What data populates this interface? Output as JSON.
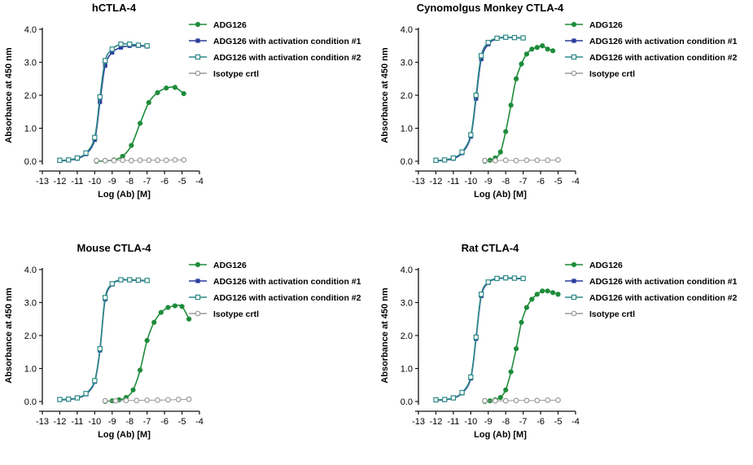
{
  "figure": {
    "panel_titles": [
      "hCTLA-4",
      "Cynomolgus Monkey CTLA-4",
      "Mouse CTLA-4",
      "Rat CTLA-4"
    ]
  },
  "chart_data": [
    {
      "type": "scatter",
      "title": "hCTLA-4",
      "xlabel": "Log (Ab) [M]",
      "ylabel": "Absorbance at 450 nm",
      "xlim": [
        -13,
        -4
      ],
      "ylim": [
        0,
        4
      ],
      "xticks": [
        "-13",
        "-12",
        "-11",
        "-10",
        "-9",
        "-8",
        "-7",
        "-6",
        "-5",
        "-4"
      ],
      "yticks": [
        "0.0",
        "1.0",
        "2.0",
        "3.0",
        "4.0"
      ],
      "grid": false,
      "legend_position": "right",
      "series": [
        {
          "name": "ADG126",
          "color": "#1e8c3a",
          "marker": "filled-circle",
          "x": [
            -9.9,
            -9.4,
            -8.9,
            -8.4,
            -7.9,
            -7.4,
            -6.9,
            -6.4,
            -5.9,
            -5.4,
            -4.9
          ],
          "y": [
            0.0,
            0.01,
            0.04,
            0.15,
            0.48,
            1.15,
            1.78,
            2.08,
            2.22,
            2.24,
            2.05
          ]
        },
        {
          "name": "ADG126 with activation condition #1",
          "color": "#2b3a9e",
          "marker": "filled-square",
          "x": [
            -12.0,
            -11.5,
            -11.0,
            -10.5,
            -10.0,
            -9.7,
            -9.4,
            -9.0,
            -8.5,
            -8.0,
            -7.5,
            -7.0
          ],
          "y": [
            0.02,
            0.03,
            0.08,
            0.22,
            0.65,
            1.8,
            2.9,
            3.3,
            3.45,
            3.5,
            3.5,
            3.48
          ]
        },
        {
          "name": "ADG126 with activation condition #2",
          "color": "#2c8a86",
          "marker": "open-square",
          "x": [
            -12.0,
            -11.5,
            -11.0,
            -10.5,
            -10.0,
            -9.7,
            -9.4,
            -9.0,
            -8.5,
            -8.0,
            -7.5,
            -7.0
          ],
          "y": [
            0.03,
            0.04,
            0.1,
            0.25,
            0.72,
            1.95,
            3.05,
            3.4,
            3.55,
            3.55,
            3.52,
            3.5
          ]
        },
        {
          "name": "Isotype crtl",
          "color": "#9a9a9a",
          "marker": "open-circle",
          "x": [
            -9.9,
            -9.4,
            -8.9,
            -8.4,
            -7.9,
            -7.4,
            -6.9,
            -6.4,
            -5.9,
            -5.4,
            -4.9
          ],
          "y": [
            0.02,
            0.02,
            0.02,
            0.03,
            0.02,
            0.03,
            0.03,
            0.03,
            0.03,
            0.04,
            0.04
          ]
        }
      ]
    },
    {
      "type": "scatter",
      "title": "Cynomologus Monkey CTLA-4",
      "xlabel": "Log (Ab) [M]",
      "ylabel": "Absorbance at 450 nm",
      "xlim": [
        -13,
        -4
      ],
      "ylim": [
        0,
        4
      ],
      "xticks": [
        "-13",
        "-12",
        "-11",
        "-10",
        "-9",
        "-8",
        "-7",
        "-6",
        "-5",
        "-4"
      ],
      "yticks": [
        "0.0",
        "1.0",
        "2.0",
        "3.0",
        "4.0"
      ],
      "grid": false,
      "legend_position": "right",
      "series": [
        {
          "name": "ADG126",
          "color": "#1e8c3a",
          "marker": "filled-circle",
          "x": [
            -9.2,
            -8.9,
            -8.6,
            -8.3,
            -8.0,
            -7.7,
            -7.4,
            -7.1,
            -6.8,
            -6.5,
            -6.2,
            -5.9,
            -5.6,
            -5.3
          ],
          "y": [
            0.0,
            0.03,
            0.1,
            0.28,
            0.9,
            1.7,
            2.5,
            2.95,
            3.25,
            3.4,
            3.45,
            3.5,
            3.4,
            3.35
          ]
        },
        {
          "name": "ADG126 with activation condition #1",
          "color": "#2b3a9e",
          "marker": "filled-square",
          "x": [
            -12.0,
            -11.5,
            -11.0,
            -10.5,
            -10.0,
            -9.7,
            -9.4,
            -9.0,
            -8.5,
            -8.0,
            -7.5,
            -7.0
          ],
          "y": [
            0.02,
            0.03,
            0.08,
            0.25,
            0.75,
            1.9,
            3.1,
            3.55,
            3.72,
            3.75,
            3.75,
            3.73
          ]
        },
        {
          "name": "ADG126 with activation condition #2",
          "color": "#2c8a86",
          "marker": "open-square",
          "x": [
            -12.0,
            -11.5,
            -11.0,
            -10.5,
            -10.0,
            -9.7,
            -9.4,
            -9.0,
            -8.5,
            -8.0,
            -7.5,
            -7.0
          ],
          "y": [
            0.03,
            0.04,
            0.1,
            0.28,
            0.8,
            2.0,
            3.2,
            3.6,
            3.73,
            3.76,
            3.75,
            3.74
          ]
        },
        {
          "name": "Isotype crtl",
          "color": "#9a9a9a",
          "marker": "open-circle",
          "x": [
            -9.2,
            -8.6,
            -8.0,
            -7.4,
            -6.8,
            -6.2,
            -5.6,
            -5.0
          ],
          "y": [
            0.02,
            0.02,
            0.03,
            0.02,
            0.03,
            0.03,
            0.03,
            0.04
          ]
        }
      ]
    },
    {
      "type": "scatter",
      "title": "Mouse CTLA-4",
      "xlabel": "Log (Ab) [M]",
      "ylabel": "Absorbance at 450 nm",
      "xlim": [
        -13,
        -4
      ],
      "ylim": [
        0,
        4
      ],
      "xticks": [
        "-13",
        "-12",
        "-11",
        "-10",
        "-9",
        "-8",
        "-7",
        "-6",
        "-5",
        "-4"
      ],
      "yticks": [
        "0.0",
        "1.0",
        "2.0",
        "3.0",
        "4.0"
      ],
      "grid": false,
      "legend_position": "right",
      "series": [
        {
          "name": "ADG126",
          "color": "#1e8c3a",
          "marker": "filled-circle",
          "x": [
            -9.4,
            -9.0,
            -8.6,
            -8.2,
            -7.8,
            -7.4,
            -7.0,
            -6.6,
            -6.2,
            -5.8,
            -5.4,
            -5.0,
            -4.6
          ],
          "y": [
            0.0,
            0.02,
            0.05,
            0.12,
            0.35,
            0.95,
            1.85,
            2.4,
            2.7,
            2.85,
            2.9,
            2.88,
            2.5
          ]
        },
        {
          "name": "ADG126 with activation condition #1",
          "color": "#2b3a9e",
          "marker": "filled-square",
          "x": [
            -12.0,
            -11.5,
            -11.0,
            -10.5,
            -10.0,
            -9.7,
            -9.4,
            -9.0,
            -8.5,
            -8.0,
            -7.5,
            -7.0
          ],
          "y": [
            0.05,
            0.06,
            0.1,
            0.22,
            0.6,
            1.55,
            3.1,
            3.55,
            3.68,
            3.68,
            3.67,
            3.66
          ]
        },
        {
          "name": "ADG126 with activation condition #2",
          "color": "#2c8a86",
          "marker": "open-square",
          "x": [
            -12.0,
            -11.5,
            -11.0,
            -10.5,
            -10.0,
            -9.7,
            -9.4,
            -9.0,
            -8.5,
            -8.0,
            -7.5,
            -7.0
          ],
          "y": [
            0.06,
            0.07,
            0.11,
            0.24,
            0.63,
            1.6,
            3.15,
            3.57,
            3.69,
            3.69,
            3.68,
            3.67
          ]
        },
        {
          "name": "Isotype crtl",
          "color": "#9a9a9a",
          "marker": "open-circle",
          "x": [
            -9.4,
            -8.8,
            -8.2,
            -7.6,
            -7.0,
            -6.4,
            -5.8,
            -5.2,
            -4.6
          ],
          "y": [
            0.02,
            0.02,
            0.03,
            0.03,
            0.04,
            0.04,
            0.05,
            0.06,
            0.07
          ]
        }
      ]
    },
    {
      "type": "scatter",
      "title": "Rat CTLA-4",
      "xlabel": "Log (Ab) [M]",
      "ylabel": "Absorbance at 450 nm",
      "xlim": [
        -13,
        -4
      ],
      "ylim": [
        0,
        4
      ],
      "xticks": [
        "-13",
        "-12",
        "-11",
        "-10",
        "-9",
        "-8",
        "-7",
        "-6",
        "-5",
        "-4"
      ],
      "yticks": [
        "0.0",
        "1.0",
        "2.0",
        "3.0",
        "4.0"
      ],
      "grid": false,
      "legend_position": "right",
      "series": [
        {
          "name": "ADG126",
          "color": "#1e8c3a",
          "marker": "filled-circle",
          "x": [
            -9.2,
            -8.9,
            -8.6,
            -8.3,
            -8.0,
            -7.7,
            -7.4,
            -7.1,
            -6.8,
            -6.5,
            -6.2,
            -5.9,
            -5.6,
            -5.3,
            -5.0
          ],
          "y": [
            0.0,
            0.02,
            0.05,
            0.12,
            0.35,
            0.9,
            1.6,
            2.4,
            2.85,
            3.1,
            3.25,
            3.35,
            3.35,
            3.3,
            3.25
          ]
        },
        {
          "name": "ADG126 with activation condition #1",
          "color": "#2b3a9e",
          "marker": "filled-square",
          "x": [
            -12.0,
            -11.5,
            -11.0,
            -10.5,
            -10.0,
            -9.7,
            -9.4,
            -9.0,
            -8.5,
            -8.0,
            -7.5,
            -7.0
          ],
          "y": [
            0.04,
            0.05,
            0.1,
            0.25,
            0.7,
            1.9,
            3.2,
            3.6,
            3.72,
            3.74,
            3.73,
            3.72
          ]
        },
        {
          "name": "ADG126 with activation condition #2",
          "color": "#2c8a86",
          "marker": "open-square",
          "x": [
            -12.0,
            -11.5,
            -11.0,
            -10.5,
            -10.0,
            -9.7,
            -9.4,
            -9.0,
            -8.5,
            -8.0,
            -7.5,
            -7.0
          ],
          "y": [
            0.05,
            0.06,
            0.11,
            0.27,
            0.74,
            1.95,
            3.25,
            3.62,
            3.73,
            3.75,
            3.74,
            3.73
          ]
        },
        {
          "name": "Isotype crtl",
          "color": "#9a9a9a",
          "marker": "open-circle",
          "x": [
            -9.2,
            -8.6,
            -8.0,
            -7.4,
            -6.8,
            -6.2,
            -5.6,
            -5.0
          ],
          "y": [
            0.02,
            0.02,
            0.02,
            0.03,
            0.03,
            0.03,
            0.04,
            0.04
          ]
        }
      ]
    }
  ]
}
